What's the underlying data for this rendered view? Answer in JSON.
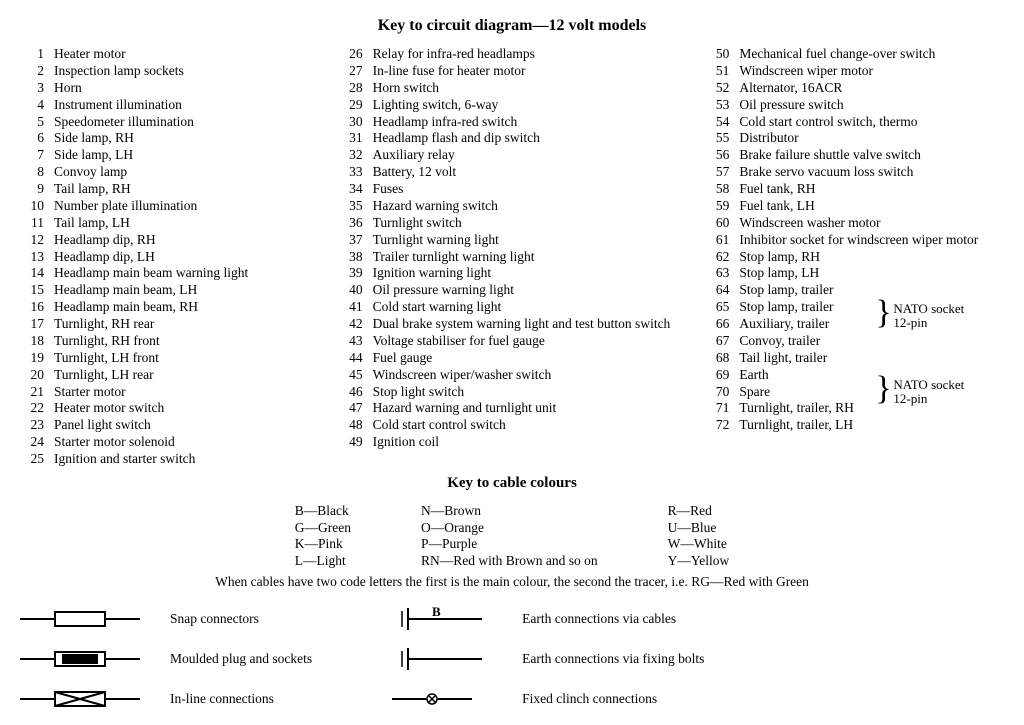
{
  "title_main": "Key to circuit diagram—12 volt models",
  "title_colours": "Key to cable colours",
  "items_col1": [
    {
      "n": "1",
      "t": "Heater motor"
    },
    {
      "n": "2",
      "t": "Inspection lamp sockets"
    },
    {
      "n": "3",
      "t": "Horn"
    },
    {
      "n": "4",
      "t": "Instrument illumination"
    },
    {
      "n": "5",
      "t": "Speedometer illumination"
    },
    {
      "n": "6",
      "t": "Side lamp, RH"
    },
    {
      "n": "7",
      "t": "Side lamp, LH"
    },
    {
      "n": "8",
      "t": "Convoy lamp"
    },
    {
      "n": "9",
      "t": "Tail lamp, RH"
    },
    {
      "n": "10",
      "t": "Number plate illumination"
    },
    {
      "n": "11",
      "t": "Tail lamp, LH"
    },
    {
      "n": "12",
      "t": "Headlamp dip, RH"
    },
    {
      "n": "13",
      "t": "Headlamp dip, LH"
    },
    {
      "n": "14",
      "t": "Headlamp main beam warning light"
    },
    {
      "n": "15",
      "t": "Headlamp main beam, LH"
    },
    {
      "n": "16",
      "t": "Headlamp main beam, RH"
    },
    {
      "n": "17",
      "t": "Turnlight, RH rear"
    },
    {
      "n": "18",
      "t": "Turnlight, RH front"
    },
    {
      "n": "19",
      "t": "Turnlight, LH front"
    },
    {
      "n": "20",
      "t": "Turnlight, LH rear"
    },
    {
      "n": "21",
      "t": "Starter motor"
    },
    {
      "n": "22",
      "t": "Heater motor switch"
    },
    {
      "n": "23",
      "t": "Panel light switch"
    },
    {
      "n": "24",
      "t": "Starter motor solenoid"
    },
    {
      "n": "25",
      "t": "Ignition and starter switch"
    }
  ],
  "items_col2": [
    {
      "n": "26",
      "t": "Relay for infra-red headlamps"
    },
    {
      "n": "27",
      "t": "In-line fuse for heater motor"
    },
    {
      "n": "28",
      "t": "Horn switch"
    },
    {
      "n": "29",
      "t": "Lighting switch, 6-way"
    },
    {
      "n": "30",
      "t": "Headlamp infra-red switch"
    },
    {
      "n": "31",
      "t": "Headlamp flash and dip switch"
    },
    {
      "n": "32",
      "t": "Auxiliary relay"
    },
    {
      "n": "33",
      "t": "Battery, 12 volt"
    },
    {
      "n": "34",
      "t": "Fuses"
    },
    {
      "n": "35",
      "t": "Hazard warning switch"
    },
    {
      "n": "36",
      "t": "Turnlight switch"
    },
    {
      "n": "37",
      "t": "Turnlight warning light"
    },
    {
      "n": "38",
      "t": "Trailer turnlight warning light"
    },
    {
      "n": "39",
      "t": "Ignition warning light"
    },
    {
      "n": "40",
      "t": "Oil pressure warning light"
    },
    {
      "n": "41",
      "t": "Cold start warning light"
    },
    {
      "n": "42",
      "t": "Dual brake system warning light and test button switch"
    },
    {
      "n": "43",
      "t": "Voltage stabiliser for fuel gauge"
    },
    {
      "n": "44",
      "t": "Fuel gauge"
    },
    {
      "n": "45",
      "t": "Windscreen wiper/washer switch"
    },
    {
      "n": "46",
      "t": "Stop light switch"
    },
    {
      "n": "47",
      "t": "Hazard warning and turnlight unit"
    },
    {
      "n": "48",
      "t": "Cold start control switch"
    },
    {
      "n": "49",
      "t": "Ignition coil"
    }
  ],
  "items_col3": [
    {
      "n": "50",
      "t": "Mechanical fuel change-over switch"
    },
    {
      "n": "51",
      "t": "Windscreen wiper motor"
    },
    {
      "n": "52",
      "t": "Alternator, 16ACR"
    },
    {
      "n": "53",
      "t": "Oil pressure switch"
    },
    {
      "n": "54",
      "t": "Cold start control switch, thermo"
    },
    {
      "n": "55",
      "t": "Distributor"
    },
    {
      "n": "56",
      "t": "Brake failure shuttle valve switch"
    },
    {
      "n": "57",
      "t": "Brake servo vacuum loss switch"
    },
    {
      "n": "58",
      "t": "Fuel tank, RH"
    },
    {
      "n": "59",
      "t": "Fuel tank, LH"
    },
    {
      "n": "60",
      "t": "Windscreen washer motor"
    },
    {
      "n": "61",
      "t": "Inhibitor socket for windscreen wiper motor"
    },
    {
      "n": "62",
      "t": "Stop lamp, RH"
    },
    {
      "n": "63",
      "t": "Stop lamp, LH"
    },
    {
      "n": "64",
      "t": "Stop lamp, trailer"
    },
    {
      "n": "65",
      "t": "Stop lamp, trailer"
    },
    {
      "n": "66",
      "t": "Auxiliary, trailer"
    },
    {
      "n": "67",
      "t": "Convoy, trailer"
    },
    {
      "n": "68",
      "t": "Tail light, trailer"
    },
    {
      "n": "69",
      "t": "Earth"
    },
    {
      "n": "70",
      "t": "Spare"
    },
    {
      "n": "71",
      "t": "Turnlight, trailer, RH"
    },
    {
      "n": "72",
      "t": "Turnlight, trailer, LH"
    }
  ],
  "bracket1": {
    "label_l1": "NATO socket",
    "label_l2": "12-pin"
  },
  "bracket2": {
    "label_l1": "NATO socket",
    "label_l2": "12-pin"
  },
  "colours_col1": [
    "B—Black",
    "G—Green",
    "K—Pink",
    "L—Light"
  ],
  "colours_col2": [
    "N—Brown",
    "O—Orange",
    "P—Purple",
    "RN—Red with Brown and so on"
  ],
  "colours_col3": [
    "R—Red",
    "U—Blue",
    "W—White",
    "Y—Yellow"
  ],
  "cable_note": "When cables have two code letters the first is the main colour, the second the tracer, i.e. RG—Red with Green",
  "legend_left": [
    "Snap connectors",
    "Moulded plug and sockets",
    "In-line connections"
  ],
  "legend_right": [
    "Earth connections via cables",
    "Earth connections via fixing bolts",
    "Fixed clinch connections"
  ],
  "legend_right_b": "B"
}
